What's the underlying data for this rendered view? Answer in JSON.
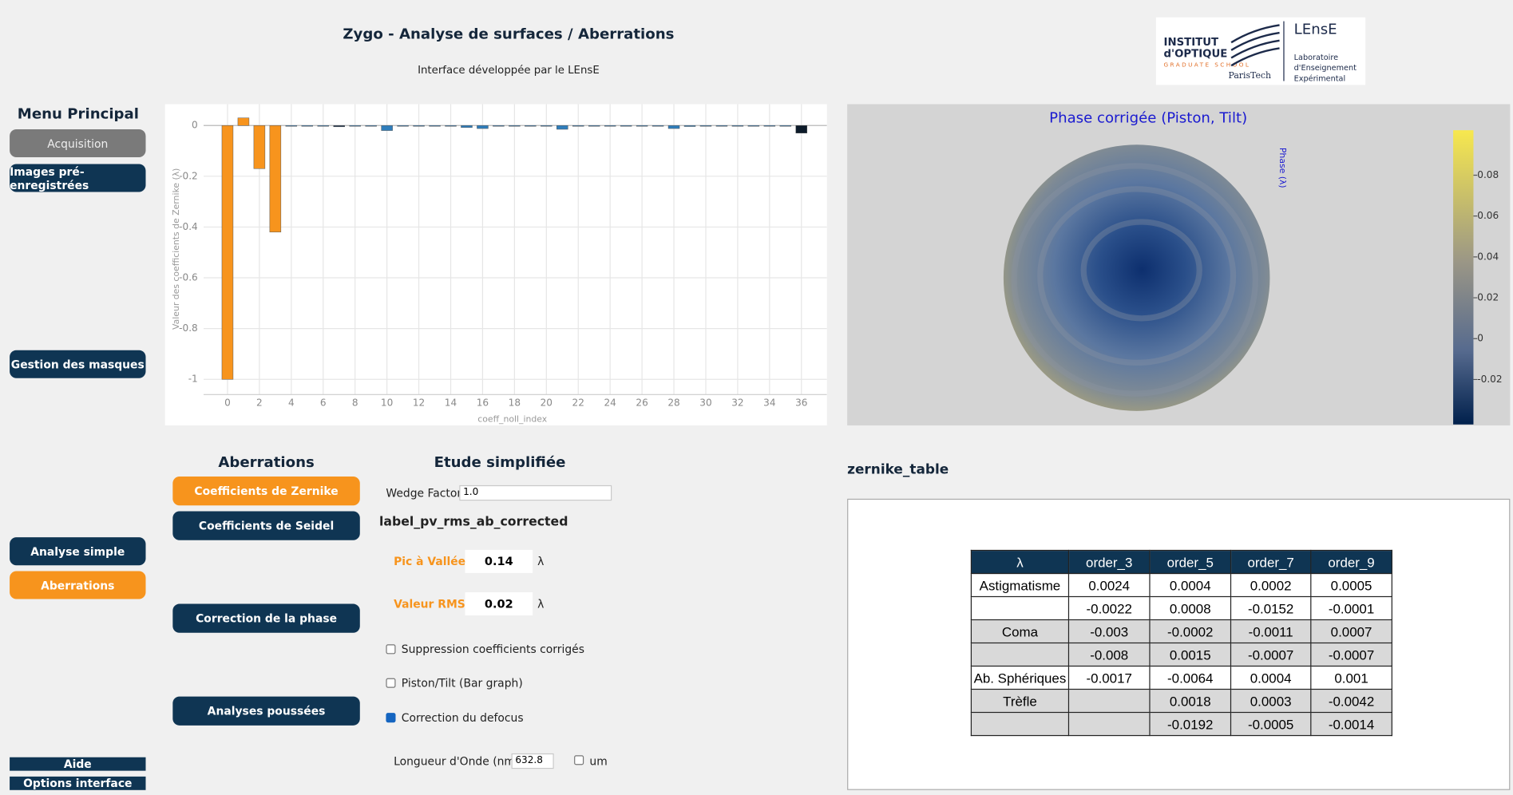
{
  "header": {
    "title": "Zygo - Analyse de surfaces / Aberrations",
    "subtitle": "Interface développée par le LEnsE",
    "logo": {
      "line1": "INSTITUT",
      "line2": "d'OPTIQUE",
      "line3": "GRADUATE SCHOOL",
      "line4": "ParisTech",
      "lab": "LEnsE",
      "lab_line1": "Laboratoire",
      "lab_line2": "d'Enseignement",
      "lab_line3": "Expérimental"
    }
  },
  "menu": {
    "title": "Menu Principal",
    "buttons": [
      "Acquisition",
      "Images pré-enregistrées",
      "Gestion des masques",
      "Analyse simple",
      "Aberrations",
      "Aide",
      "Options interface"
    ]
  },
  "chart_data": {
    "type": "bar",
    "x_label": "coeff_noll_index",
    "y_label": "Valeur des coefficients de Zernike (λ)",
    "x": [
      0,
      1,
      2,
      3,
      4,
      5,
      6,
      7,
      8,
      9,
      10,
      11,
      12,
      13,
      14,
      15,
      16,
      17,
      18,
      19,
      20,
      21,
      22,
      23,
      24,
      25,
      26,
      27,
      28,
      29,
      30,
      31,
      32,
      33,
      34,
      35,
      36
    ],
    "values": [
      -1.0,
      0.03,
      -0.17,
      -0.42,
      -0.002,
      -0.003,
      -0.003,
      -0.005,
      -0.002,
      -0.002,
      -0.02,
      -0.002,
      -0.002,
      -0.002,
      -0.003,
      -0.008,
      -0.012,
      -0.002,
      -0.002,
      -0.002,
      -0.002,
      -0.015,
      -0.003,
      -0.003,
      -0.003,
      -0.002,
      -0.002,
      -0.003,
      -0.012,
      -0.004,
      -0.002,
      -0.002,
      -0.002,
      -0.002,
      -0.002,
      -0.002,
      -0.03
    ],
    "colors": [
      "#f7941d",
      "#f7941d",
      "#f7941d",
      "#f7941d",
      "#2f7ebc",
      "#2f7ebc",
      "#2f7ebc",
      "#1f3550",
      "#2f7ebc",
      "#2f7ebc",
      "#2f7ebc",
      "#2f7ebc",
      "#2f7ebc",
      "#2f7ebc",
      "#2f7ebc",
      "#2f7ebc",
      "#2f7ebc",
      "#2f7ebc",
      "#2f7ebc",
      "#2f7ebc",
      "#2f7ebc",
      "#2f7ebc",
      "#2f7ebc",
      "#2f7ebc",
      "#2f7ebc",
      "#2f7ebc",
      "#2f7ebc",
      "#2f7ebc",
      "#2f7ebc",
      "#2f7ebc",
      "#2f7ebc",
      "#2f7ebc",
      "#2f7ebc",
      "#2f7ebc",
      "#2f7ebc",
      "#2f7ebc",
      "#0d1b2a"
    ],
    "xlim": [
      -1.5,
      37.6
    ],
    "xticks": [
      0,
      2,
      4,
      6,
      8,
      10,
      12,
      14,
      16,
      18,
      20,
      22,
      24,
      26,
      28,
      30,
      32,
      34,
      36
    ],
    "ylim": [
      -1.06,
      0.084
    ],
    "yticks": [
      0,
      -0.2,
      -0.4,
      -0.6,
      -0.8,
      -1
    ],
    "grid": true
  },
  "phase_map": {
    "title": "Phase corrigée (Piston, Tilt)",
    "colorbar_label": "Phase (λ)",
    "clim": [
      -0.042,
      0.102
    ],
    "colorbar_ticks": [
      0.08,
      0.06,
      0.04,
      0.02,
      0,
      -0.02
    ]
  },
  "aberrations": {
    "title": "Aberrations",
    "buttons": [
      "Coefficients de Zernike",
      "Coefficients de Seidel",
      "Correction de la phase",
      "Analyses poussées"
    ]
  },
  "etude": {
    "title": "Etude simplifiée",
    "wedge_label": "Wedge Factor",
    "wedge_value": "1.0",
    "pv_rms_label": "label_pv_rms_ab_corrected",
    "pv_label": "Pic à Vallée",
    "pv_value": 0.14,
    "rms_label": "Valeur RMS",
    "rms_value": 0.02,
    "unit": "λ",
    "checkboxes": [
      {
        "label": "Suppression coefficients corrigés",
        "checked": false
      },
      {
        "label": "Piston/Tilt (Bar graph)",
        "checked": false
      },
      {
        "label": "Correction du defocus",
        "checked": true
      }
    ],
    "wavelength_label": "Longueur d'Onde (nm)",
    "wavelength_value": 632.8,
    "um": {
      "label": "um",
      "checked": false
    }
  },
  "table": {
    "title": "zernike_table",
    "header": [
      "λ",
      "order_3",
      "order_5",
      "order_7",
      "order_9"
    ],
    "rows": [
      [
        "Astigmatisme",
        0.0024,
        0.0004,
        0.0002,
        0.0005
      ],
      [
        null,
        -0.0022,
        0.0008,
        -0.0152,
        -0.0001
      ],
      [
        "Coma",
        -0.003,
        -0.0002,
        -0.0011,
        0.0007
      ],
      [
        null,
        -0.008,
        0.0015,
        -0.0007,
        -0.0007
      ],
      [
        "Ab. Sphériques",
        -0.0017,
        -0.0064,
        0.0004,
        0.001
      ],
      [
        "Trèfle",
        null,
        0.0018,
        0.0003,
        -0.0042
      ],
      [
        null,
        null,
        -0.0192,
        -0.0005,
        -0.0014
      ]
    ],
    "row_shading": [
      false,
      false,
      true,
      true,
      false,
      true,
      true
    ]
  }
}
